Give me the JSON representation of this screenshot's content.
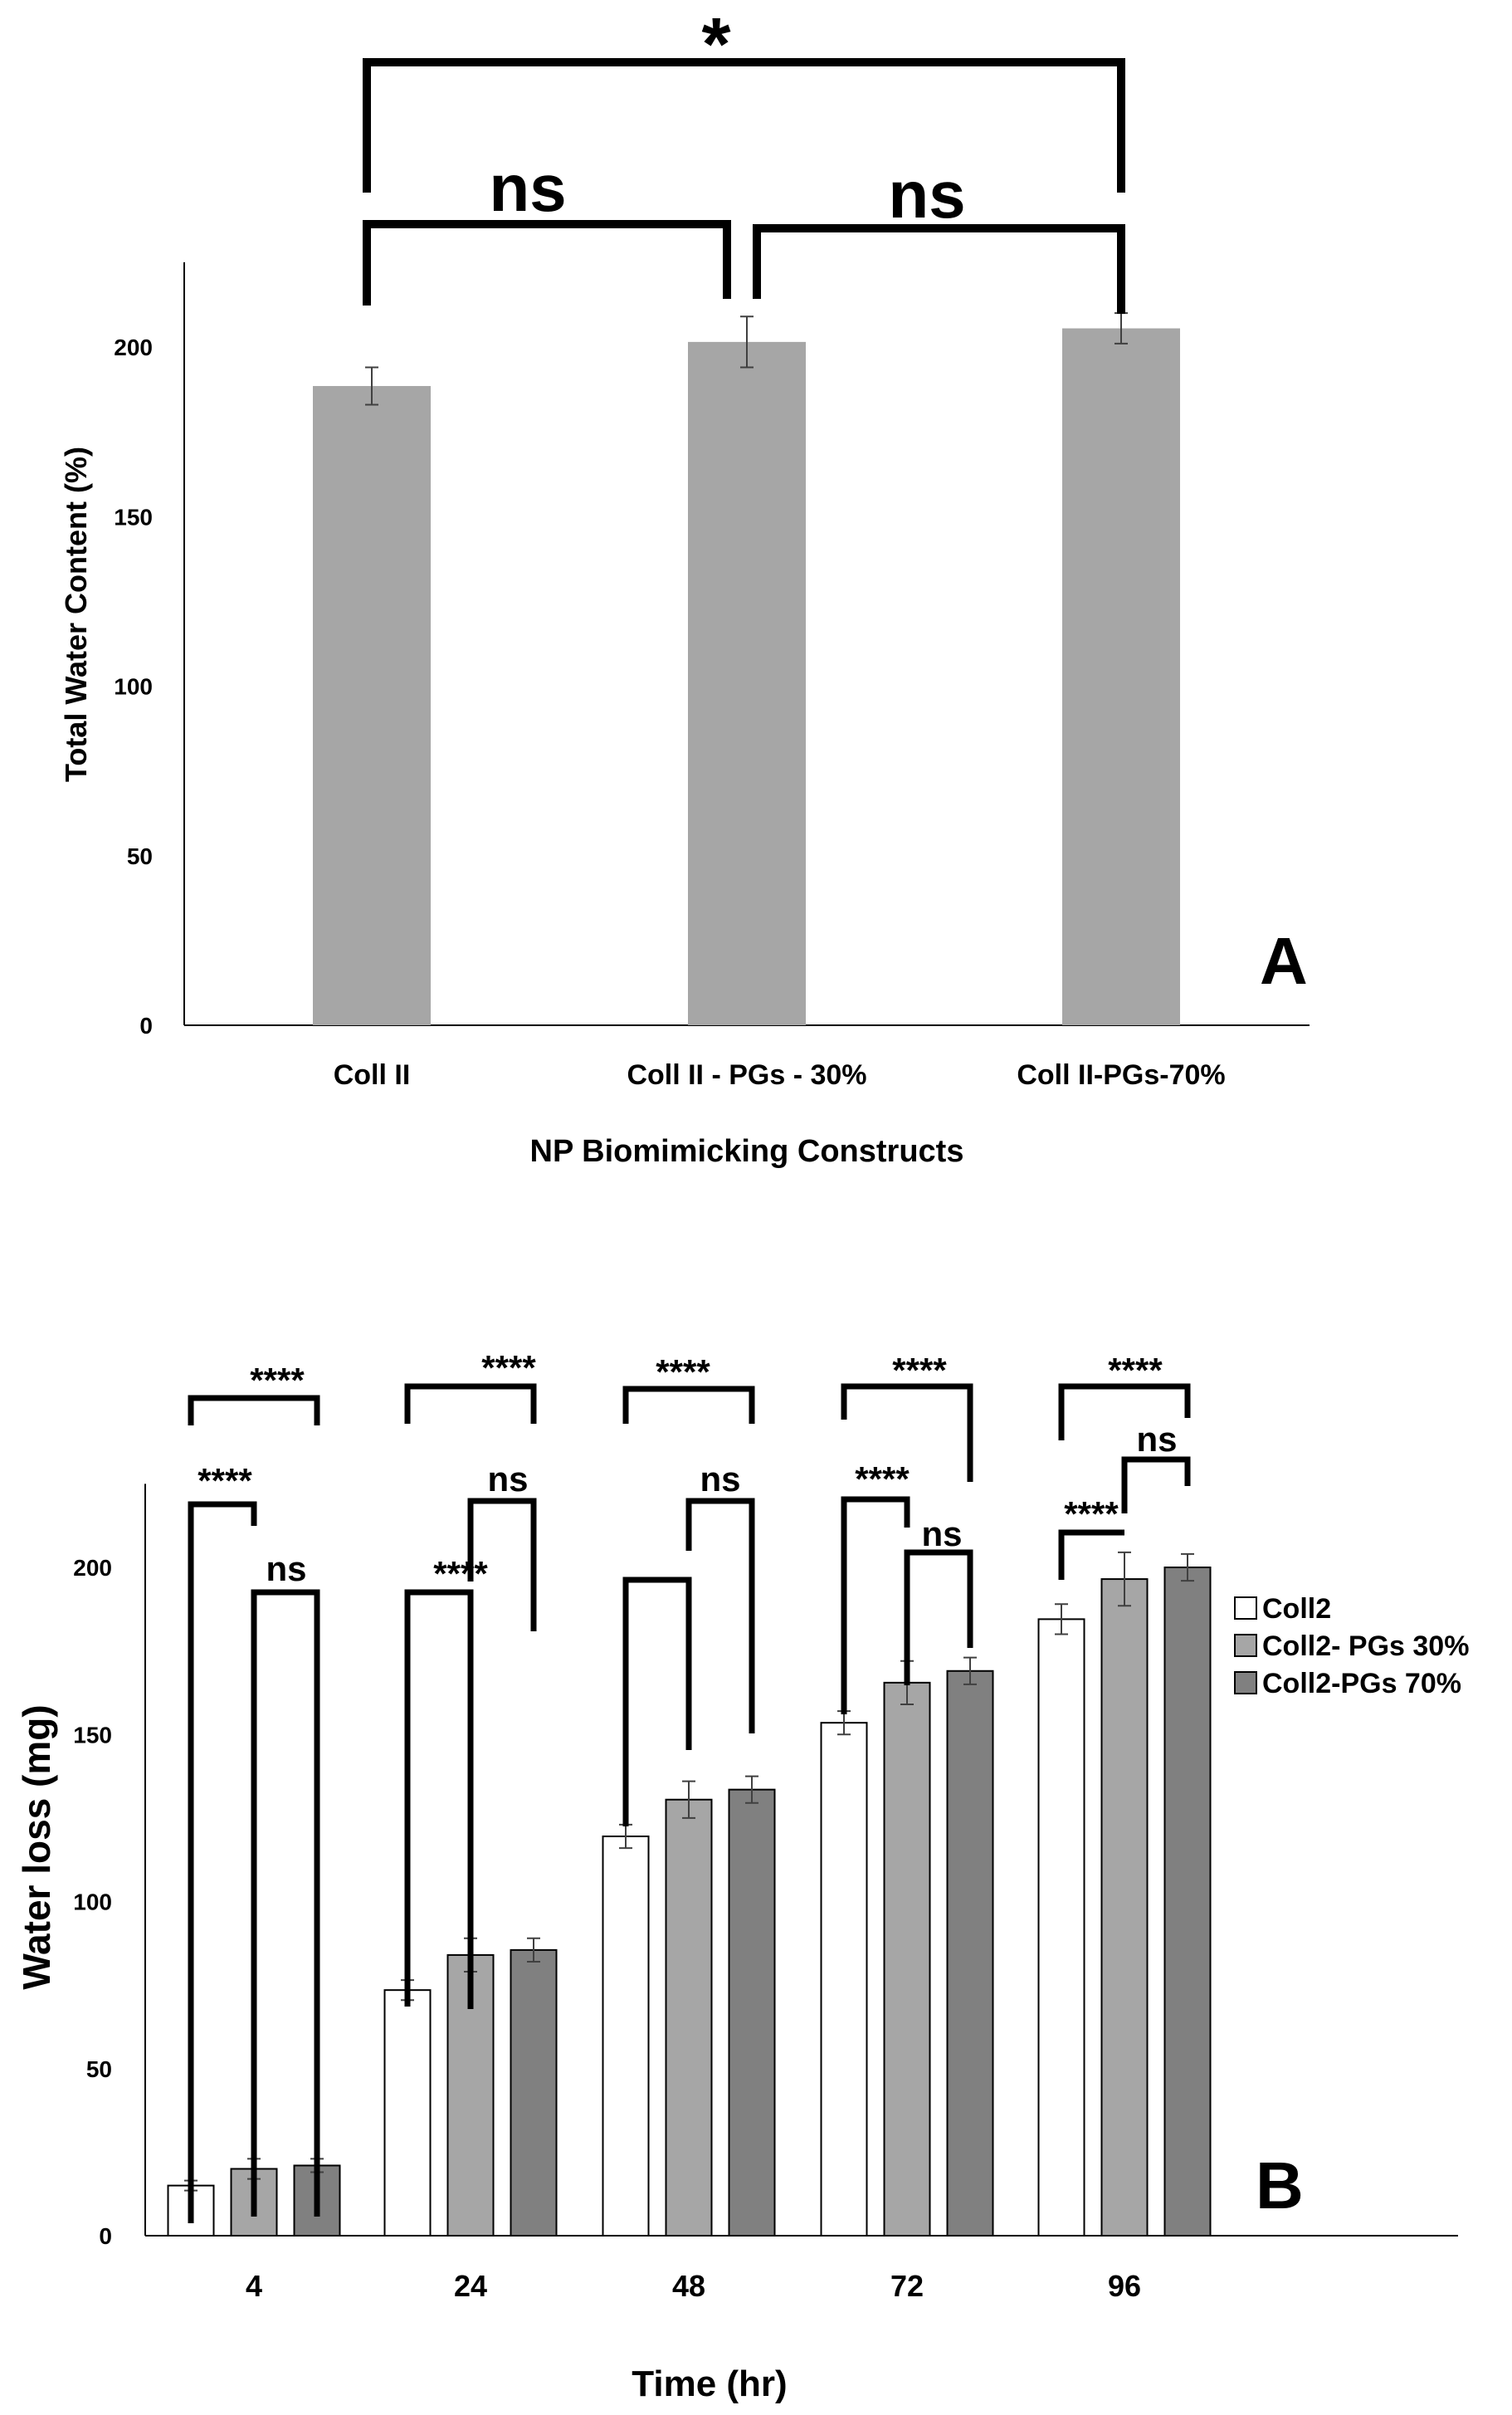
{
  "chart_data": [
    {
      "type": "bar",
      "panel_label": "A",
      "xlabel": "NP Biomimicking Constructs",
      "ylabel": "Total Water Content (%)",
      "ylim": [
        0,
        225
      ],
      "yticks": [
        0,
        50,
        100,
        150,
        200
      ],
      "categories": [
        "Coll II",
        "Coll II - PGs - 30%",
        "Coll II-PGs-70%"
      ],
      "values": [
        188.5,
        201.5,
        205.5
      ],
      "errors": [
        5.5,
        7.5,
        4.5
      ],
      "bar_color": "#a6a6a6",
      "significance": [
        {
          "from": 0,
          "to": 1,
          "label": "ns"
        },
        {
          "from": 1,
          "to": 2,
          "label": "ns"
        },
        {
          "from": 0,
          "to": 2,
          "label": "*"
        }
      ]
    },
    {
      "type": "bar",
      "panel_label": "B",
      "xlabel": "Time (hr)",
      "ylabel": "Water loss (mg)",
      "ylim": [
        0,
        225
      ],
      "yticks": [
        0,
        50,
        100,
        150,
        200
      ],
      "categories": [
        "4",
        "24",
        "48",
        "72",
        "96"
      ],
      "legend_position": "right",
      "series": [
        {
          "name": "Coll2",
          "color": "#ffffff",
          "values": [
            15,
            73.5,
            119.5,
            153.5,
            184.5
          ],
          "errors": [
            1.5,
            3,
            3.5,
            3.5,
            4.5
          ]
        },
        {
          "name": "Coll2- PGs 30%",
          "color": "#a6a6a6",
          "values": [
            20,
            84,
            130.5,
            165.5,
            196.5
          ],
          "errors": [
            3,
            5,
            5.5,
            6.5,
            8
          ]
        },
        {
          "name": "Coll2-PGs 70%",
          "color": "#808080",
          "values": [
            21,
            85.5,
            133.5,
            169,
            200
          ],
          "errors": [
            2,
            3.5,
            4,
            4,
            4
          ]
        }
      ],
      "significance": [
        {
          "group": 0,
          "from": 0,
          "to": 2,
          "label": "****"
        },
        {
          "group": 0,
          "from": 0,
          "to": 1,
          "label": "****"
        },
        {
          "group": 0,
          "from": 1,
          "to": 2,
          "label": "ns"
        },
        {
          "group": 1,
          "from": 0,
          "to": 2,
          "label": "****"
        },
        {
          "group": 1,
          "from": 0,
          "to": 1,
          "label": "****"
        },
        {
          "group": 1,
          "from": 1,
          "to": 2,
          "label": "ns"
        },
        {
          "group": 2,
          "from": 0,
          "to": 2,
          "label": "****"
        },
        {
          "group": 2,
          "from": 0,
          "to": 1,
          "label": ""
        },
        {
          "group": 2,
          "from": 1,
          "to": 2,
          "label": "ns"
        },
        {
          "group": 3,
          "from": 0,
          "to": 2,
          "label": "****"
        },
        {
          "group": 3,
          "from": 0,
          "to": 1,
          "label": "****"
        },
        {
          "group": 3,
          "from": 1,
          "to": 2,
          "label": "ns"
        },
        {
          "group": 4,
          "from": 0,
          "to": 2,
          "label": "****"
        },
        {
          "group": 4,
          "from": 0,
          "to": 1,
          "label": "****"
        },
        {
          "group": 4,
          "from": 1,
          "to": 2,
          "label": "ns"
        }
      ]
    }
  ]
}
